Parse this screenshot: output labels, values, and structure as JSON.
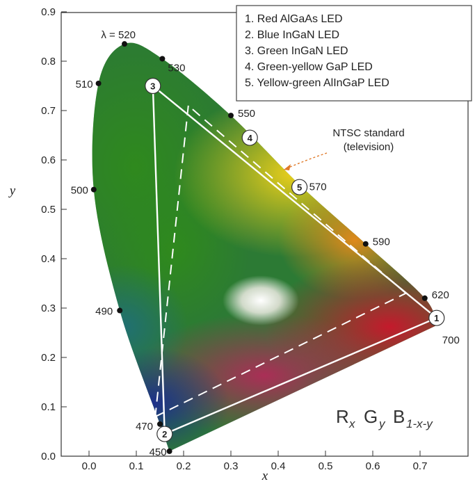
{
  "chart_data": {
    "type": "scatter",
    "title": "",
    "xlabel": "x",
    "ylabel": "y",
    "xlim": [
      -0.1,
      0.8
    ],
    "ylim": [
      0.0,
      0.9
    ],
    "x_ticks": [
      "0.0",
      "0.1",
      "0.2",
      "0.3",
      "0.4",
      "0.5",
      "0.6",
      "0.7"
    ],
    "y_ticks": [
      "0.0",
      "0.1",
      "0.2",
      "0.3",
      "0.4",
      "0.5",
      "0.6",
      "0.7",
      "0.8",
      "0.9"
    ],
    "grid": false,
    "legend_position": "top-right",
    "spectral_locus": [
      {
        "label": "450",
        "x": 0.17,
        "y": 0.01
      },
      {
        "label": "470",
        "x": 0.15,
        "y": 0.065
      },
      {
        "label": "490",
        "x": 0.065,
        "y": 0.295
      },
      {
        "label": "500",
        "x": 0.01,
        "y": 0.54
      },
      {
        "label": "510",
        "x": 0.02,
        "y": 0.755
      },
      {
        "label": "λ = 520",
        "x": 0.075,
        "y": 0.835
      },
      {
        "label": "530",
        "x": 0.155,
        "y": 0.805
      },
      {
        "label": "550",
        "x": 0.3,
        "y": 0.69
      },
      {
        "label": "570",
        "x": 0.445,
        "y": 0.55
      },
      {
        "label": "590",
        "x": 0.585,
        "y": 0.43
      },
      {
        "label": "620",
        "x": 0.71,
        "y": 0.32
      },
      {
        "label": "700",
        "x": 0.735,
        "y": 0.265
      }
    ],
    "leds": [
      {
        "id": "1",
        "name": "Red AlGaAs LED",
        "x": 0.735,
        "y": 0.28
      },
      {
        "id": "2",
        "name": "Blue InGaN LED",
        "x": 0.16,
        "y": 0.045
      },
      {
        "id": "3",
        "name": "Green InGaN LED",
        "x": 0.135,
        "y": 0.75
      },
      {
        "id": "4",
        "name": "Green-yellow GaP LED",
        "x": 0.34,
        "y": 0.645
      },
      {
        "id": "5",
        "name": "Yellow-green AlInGaP LED",
        "x": 0.445,
        "y": 0.545
      }
    ],
    "led_gamut_triangle": [
      [
        0.735,
        0.28
      ],
      [
        0.16,
        0.045
      ],
      [
        0.135,
        0.75
      ]
    ],
    "ntsc_triangle": [
      [
        0.67,
        0.33
      ],
      [
        0.21,
        0.71
      ],
      [
        0.14,
        0.08
      ]
    ],
    "annotations": {
      "ntsc_line1": "NTSC standard",
      "ntsc_line2": "(television)"
    },
    "formula": {
      "r": "R",
      "r_sub": "x",
      "g": "G",
      "g_sub": "y",
      "b": "B",
      "b_sub": "1-x-y"
    }
  },
  "legend_items": [
    "1. Red AlGaAs LED",
    "2. Blue InGaN LED",
    "3. Green InGaN LED",
    "4. Green-yellow GaP LED",
    "5. Yellow-green AlInGaP LED"
  ]
}
